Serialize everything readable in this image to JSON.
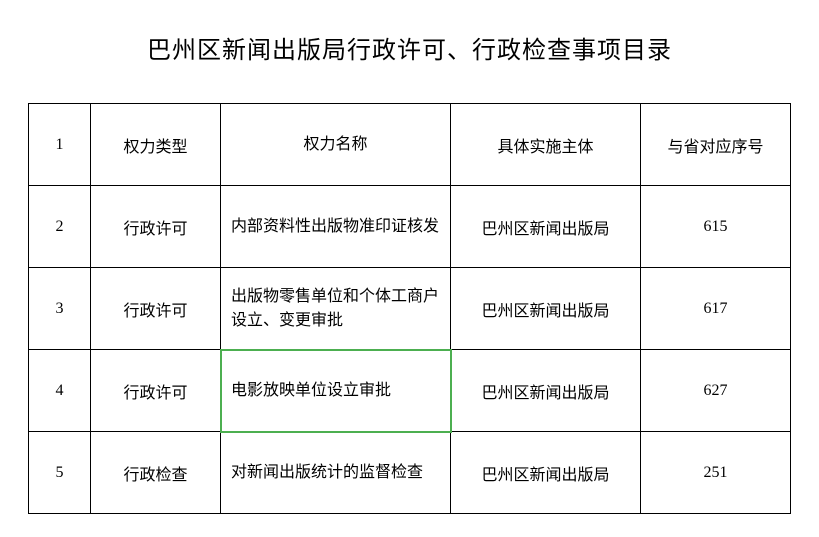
{
  "title": "巴州区新闻出版局行政许可、行政检查事项目录",
  "table": {
    "columns": [
      "1",
      "权力类型",
      "权力名称",
      "具体实施主体",
      "与省对应序号"
    ],
    "rows": [
      {
        "idx": "2",
        "type": "行政许可",
        "name": "内部资料性出版物准印证核发",
        "body": "巴州区新闻出版局",
        "seq": "615",
        "highlight_name": false
      },
      {
        "idx": "3",
        "type": "行政许可",
        "name": "出版物零售单位和个体工商户设立、变更审批",
        "body": "巴州区新闻出版局",
        "seq": "617",
        "highlight_name": false
      },
      {
        "idx": "4",
        "type": "行政许可",
        "name": "电影放映单位设立审批",
        "body": "巴州区新闻出版局",
        "seq": "627",
        "highlight_name": true
      },
      {
        "idx": "5",
        "type": "行政检查",
        "name": "对新闻出版统计的监督检查",
        "body": "巴州区新闻出版局",
        "seq": "251",
        "highlight_name": false
      }
    ],
    "highlight_color": "#4caf50"
  }
}
